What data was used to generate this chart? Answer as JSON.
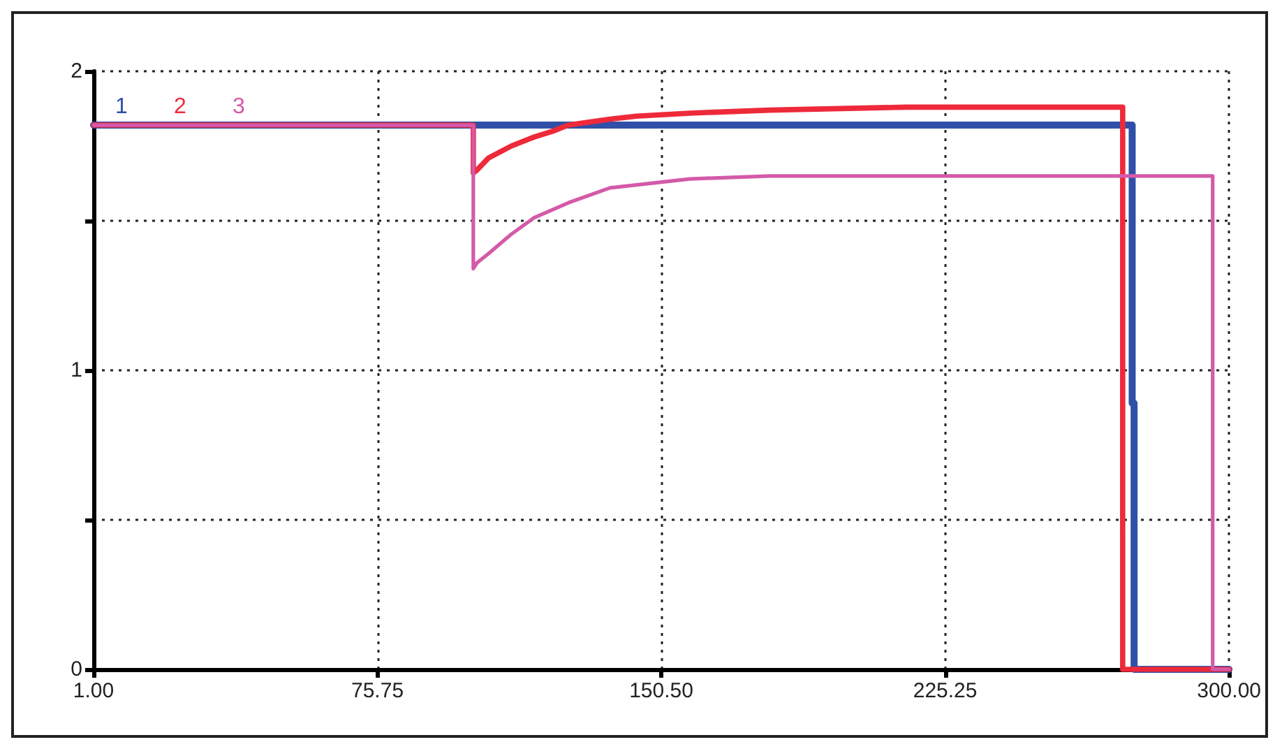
{
  "chart_data": {
    "type": "line",
    "xlim": [
      1,
      300
    ],
    "xticks": [
      {
        "value": 1,
        "label": "1.00"
      },
      {
        "value": 75.75,
        "label": "75.75"
      },
      {
        "value": 150.5,
        "label": "150.50"
      },
      {
        "value": 225.25,
        "label": "225.25"
      },
      {
        "value": 300,
        "label": "300.00"
      }
    ],
    "ylim": [
      0,
      2
    ],
    "yticks": [
      0,
      {
        "value": 0.5,
        "label": null
      },
      1,
      {
        "value": 1.5,
        "label": null
      },
      2
    ],
    "grid": true,
    "legend": false,
    "line_style": "solid",
    "marker": "none",
    "series": [
      {
        "name": "1",
        "color": "#3050a8",
        "x": [
          1,
          101,
          274.5,
          274.5,
          275,
          275,
          300
        ],
        "values": [
          1.82,
          1.82,
          1.82,
          0.89,
          0.89,
          0,
          0
        ]
      },
      {
        "name": "2",
        "color": "#ee2a3a",
        "x": [
          1,
          101,
          101,
          102,
          105,
          111,
          117,
          122,
          126,
          137,
          144,
          158,
          179,
          215,
          250,
          272,
          272,
          300
        ],
        "values": [
          1.82,
          1.82,
          1.66,
          1.67,
          1.71,
          1.75,
          1.78,
          1.8,
          1.82,
          1.84,
          1.85,
          1.86,
          1.87,
          1.88,
          1.88,
          1.88,
          0,
          0
        ]
      },
      {
        "name": "3",
        "color": "#d45aa8",
        "x": [
          1,
          101,
          101,
          102,
          105,
          111,
          117,
          126,
          137,
          144,
          158,
          179,
          215,
          250,
          295.7,
          295.7,
          300
        ],
        "values": [
          1.82,
          1.82,
          1.34,
          1.36,
          1.39,
          1.455,
          1.51,
          1.56,
          1.61,
          1.62,
          1.64,
          1.65,
          1.65,
          1.65,
          1.65,
          0,
          0
        ]
      }
    ]
  }
}
